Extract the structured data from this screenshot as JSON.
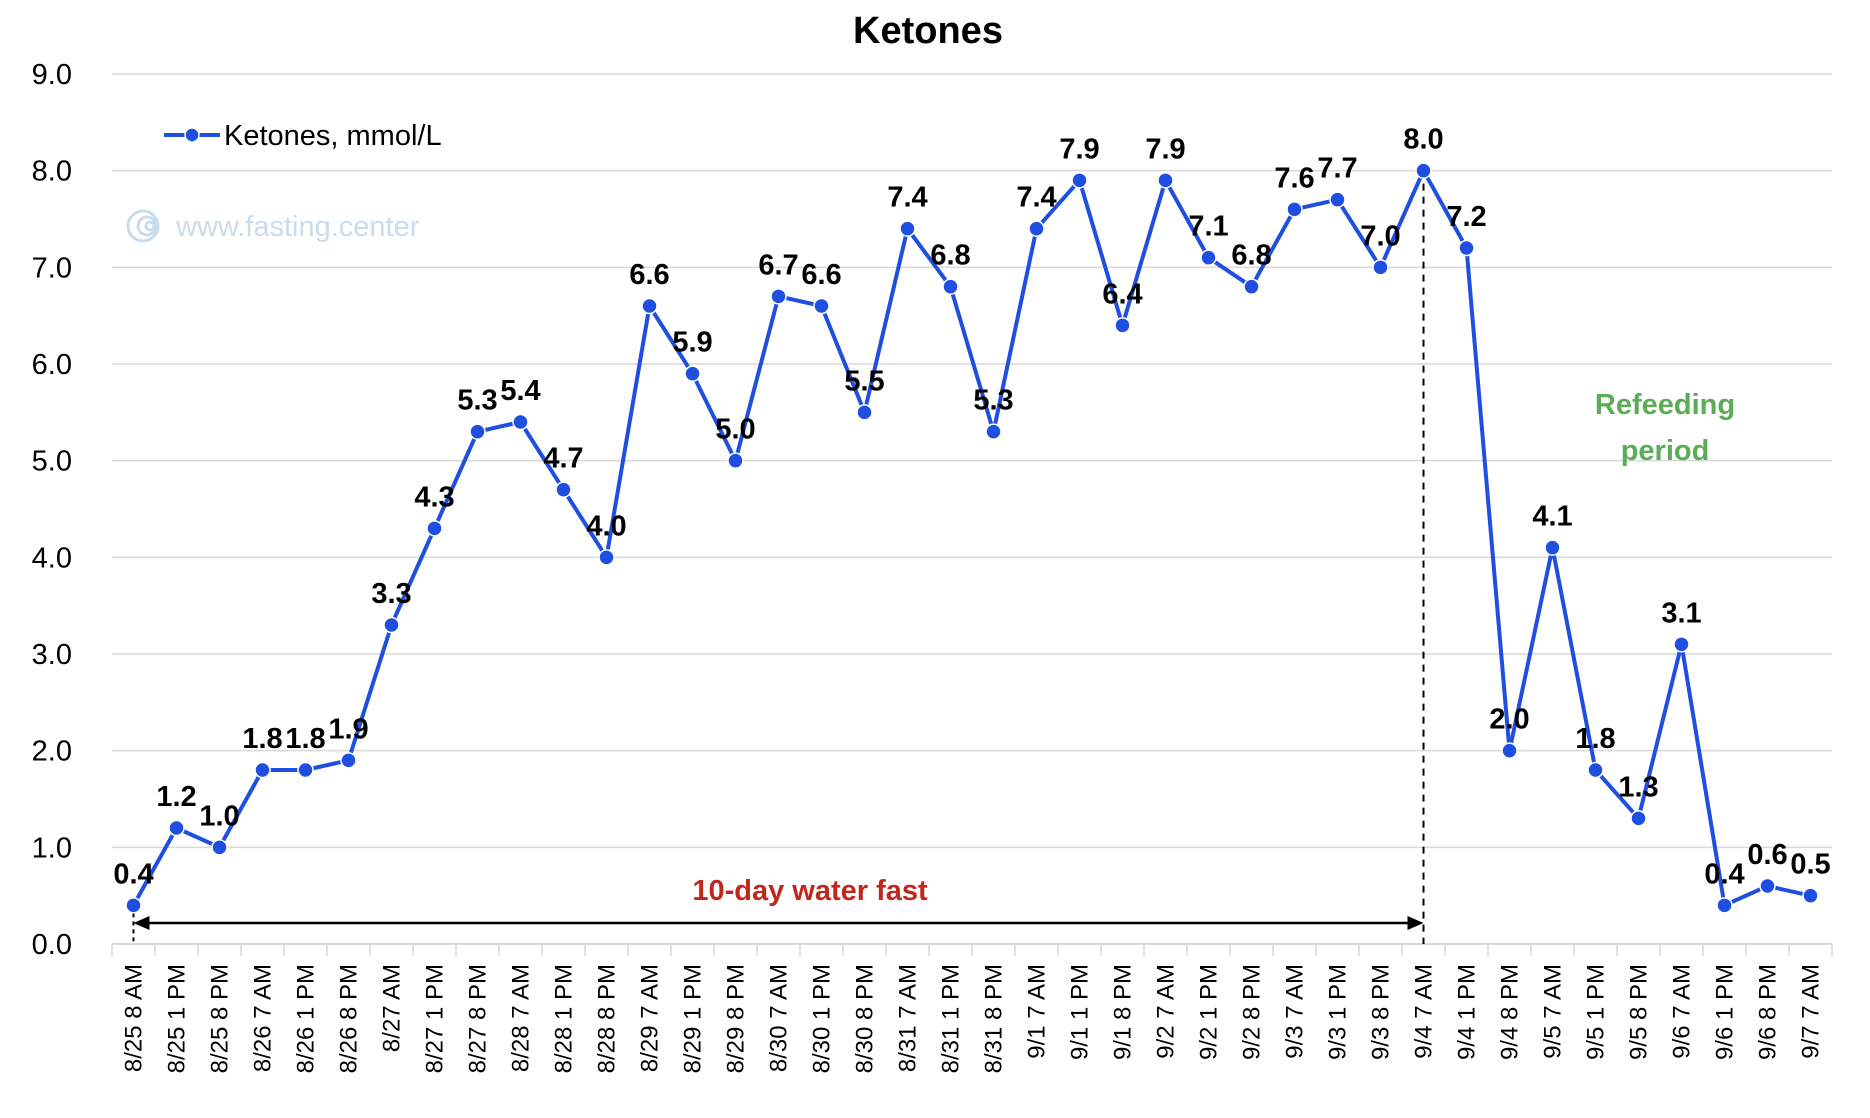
{
  "chart_data": {
    "type": "line",
    "title": "Ketones",
    "xlabel": "",
    "ylabel": "",
    "ylim": [
      0,
      9
    ],
    "yticks": [
      "0.0",
      "1.0",
      "2.0",
      "3.0",
      "4.0",
      "5.0",
      "6.0",
      "7.0",
      "8.0",
      "9.0"
    ],
    "grid": true,
    "legend_position": "top-left",
    "categories": [
      "8/25 8 AM",
      "8/25 1 PM",
      "8/25 8 PM",
      "8/26 7 AM",
      "8/26 1 PM",
      "8/26 8 PM",
      "8/27 AM",
      "8/27 1 PM",
      "8/27 8 PM",
      "8/28 7 AM",
      "8/28 1 PM",
      "8/28 8 PM",
      "8/29 7 AM",
      "8/29 1 PM",
      "8/29 8 PM",
      "8/30 7 AM",
      "8/30 1 PM",
      "8/30 8 PM",
      "8/31 7 AM",
      "8/31 1 PM",
      "8/31 8 PM",
      "9/1 7 AM",
      "9/1 1 PM",
      "9/1 8 PM",
      "9/2 7 AM",
      "9/2 1 PM",
      "9/2 8 PM",
      "9/3 7 AM",
      "9/3 1 PM",
      "9/3 8 PM",
      "9/4 7 AM",
      "9/4 1 PM",
      "9/4 8 PM",
      "9/5 7 AM",
      "9/5 1 PM",
      "9/5 8 PM",
      "9/6 7 AM",
      "9/6 1 PM",
      "9/6 8 PM",
      "9/7 7 AM"
    ],
    "series": [
      {
        "name": "Ketones, mmol/L",
        "color": "#1f4fe0",
        "values": [
          0.4,
          1.2,
          1.0,
          1.8,
          1.8,
          1.9,
          3.3,
          4.3,
          5.3,
          5.4,
          4.7,
          4.0,
          6.6,
          5.9,
          5.0,
          6.7,
          6.6,
          5.5,
          7.4,
          6.8,
          5.3,
          7.4,
          7.9,
          6.4,
          7.9,
          7.1,
          6.8,
          7.6,
          7.7,
          7.0,
          8.0,
          7.2,
          2.0,
          4.1,
          1.8,
          1.3,
          3.1,
          0.4,
          0.6,
          0.5
        ],
        "labels": [
          "0.4",
          "1.2",
          "1.0",
          "1.8",
          "1.8",
          "1.9",
          "3.3",
          "4.3",
          "5.3",
          "5.4",
          "4.7",
          "4.0",
          "6.6",
          "5.9",
          "5.0",
          "6.7",
          "6.6",
          "5.5",
          "7.4",
          "6.8",
          "5.3",
          "7.4",
          "7.9",
          "6.4",
          "7.9",
          "7.1",
          "6.8",
          "7.6",
          "7.7",
          "7.0",
          "8.0",
          "7.2",
          "2.0",
          "4.1",
          "1.8",
          "1.3",
          "3.1",
          "0.4",
          "0.6",
          "0.5"
        ]
      }
    ],
    "annotations": {
      "watermark": "www.fasting.center",
      "fast_label": "10-day water fast",
      "refeed_label_line1": "Refeeding",
      "refeed_label_line2": "period",
      "fast_start_index": 0,
      "fast_end_index": 30
    },
    "colors": {
      "line": "#1f4fe0",
      "marker": "#1f4fe0",
      "grid": "#d9d9d9",
      "fast_text": "#c0281d",
      "refeed_text": "#5aac57",
      "watermark": "#c9dcee"
    }
  }
}
